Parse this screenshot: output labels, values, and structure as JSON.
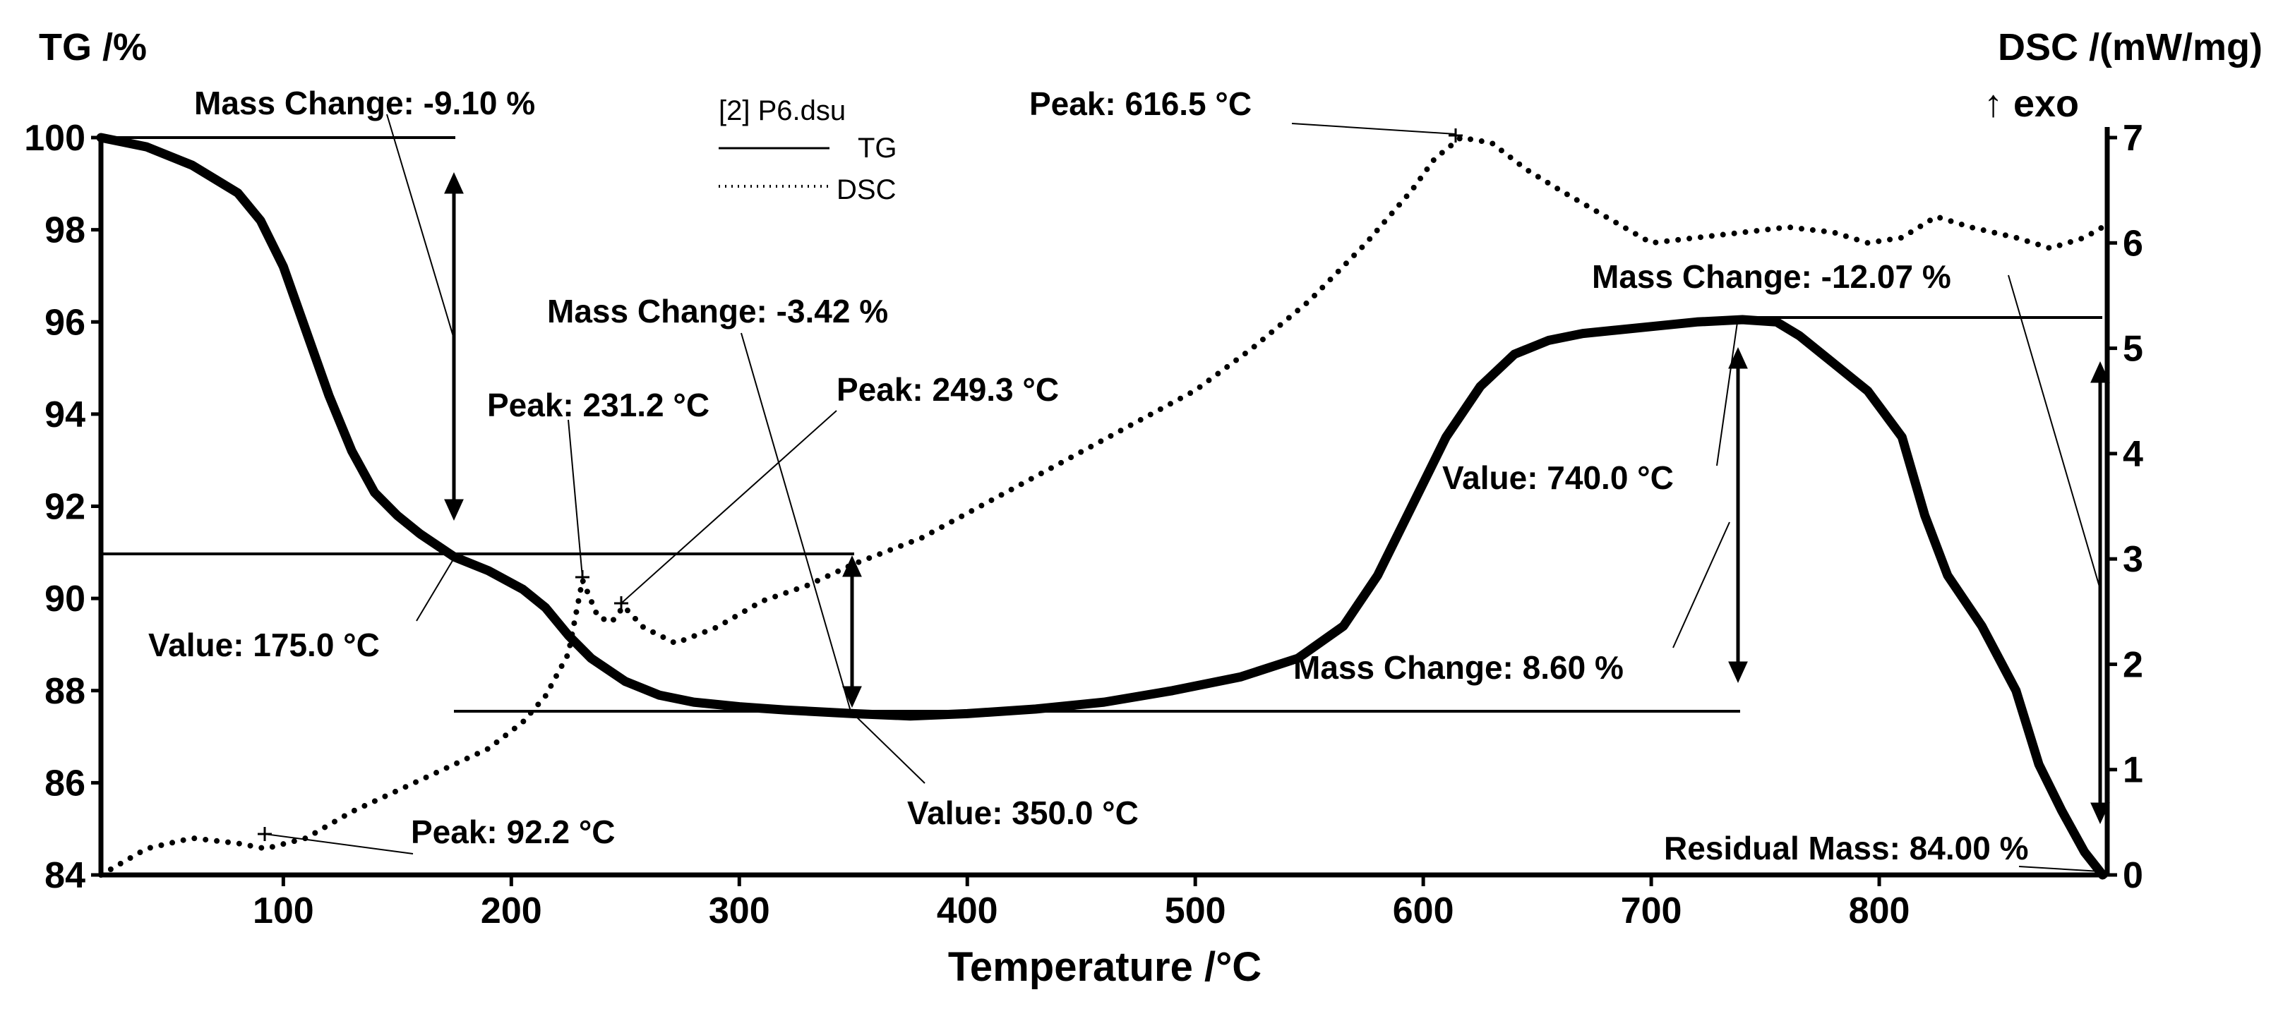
{
  "chart_data": {
    "type": "line",
    "title": "",
    "xlabel": "Temperature /°C",
    "ylabel_left": "TG /%",
    "ylabel_right": "DSC /(mW/mg)",
    "ylabel_right_sub": "↑ exo",
    "xlim": [
      20,
      900
    ],
    "ylim_left": [
      84,
      100
    ],
    "ylim_right": [
      0,
      7
    ],
    "x_ticks": [
      "100",
      "200",
      "300",
      "400",
      "500",
      "600",
      "700",
      "800"
    ],
    "y_ticks_left": [
      "84",
      "86",
      "88",
      "90",
      "92",
      "94",
      "96",
      "98",
      "100"
    ],
    "y_ticks_right": [
      "0",
      "1",
      "2",
      "3",
      "4",
      "5",
      "6",
      "7"
    ],
    "legend": {
      "file": "[2] P6.dsu",
      "entries": [
        {
          "name": "TG",
          "style": "solid"
        },
        {
          "name": "DSC",
          "style": "dotted"
        }
      ]
    },
    "series": [
      {
        "name": "TG",
        "axis": "left",
        "style": "solid",
        "points": [
          [
            20,
            100.0
          ],
          [
            40,
            99.8
          ],
          [
            60,
            99.4
          ],
          [
            80,
            98.8
          ],
          [
            90,
            98.2
          ],
          [
            100,
            97.2
          ],
          [
            110,
            95.8
          ],
          [
            120,
            94.4
          ],
          [
            130,
            93.2
          ],
          [
            140,
            92.3
          ],
          [
            150,
            91.8
          ],
          [
            160,
            91.4
          ],
          [
            175,
            90.9
          ],
          [
            190,
            90.6
          ],
          [
            205,
            90.2
          ],
          [
            215,
            89.8
          ],
          [
            225,
            89.2
          ],
          [
            235,
            88.7
          ],
          [
            250,
            88.2
          ],
          [
            265,
            87.9
          ],
          [
            280,
            87.75
          ],
          [
            300,
            87.65
          ],
          [
            320,
            87.58
          ],
          [
            350,
            87.5
          ],
          [
            375,
            87.45
          ],
          [
            400,
            87.5
          ],
          [
            430,
            87.6
          ],
          [
            460,
            87.75
          ],
          [
            490,
            88.0
          ],
          [
            520,
            88.3
          ],
          [
            545,
            88.7
          ],
          [
            565,
            89.4
          ],
          [
            580,
            90.5
          ],
          [
            595,
            92.0
          ],
          [
            610,
            93.5
          ],
          [
            625,
            94.6
          ],
          [
            640,
            95.3
          ],
          [
            655,
            95.6
          ],
          [
            670,
            95.75
          ],
          [
            700,
            95.9
          ],
          [
            720,
            96.0
          ],
          [
            740,
            96.05
          ],
          [
            755,
            96.0
          ],
          [
            765,
            95.7
          ],
          [
            780,
            95.1
          ],
          [
            795,
            94.5
          ],
          [
            810,
            93.5
          ],
          [
            820,
            91.8
          ],
          [
            830,
            90.5
          ],
          [
            845,
            89.4
          ],
          [
            860,
            88.0
          ],
          [
            870,
            86.4
          ],
          [
            880,
            85.4
          ],
          [
            890,
            84.5
          ],
          [
            898,
            84.0
          ]
        ]
      },
      {
        "name": "DSC",
        "axis": "right",
        "style": "dotted",
        "points": [
          [
            20,
            0.0
          ],
          [
            40,
            0.25
          ],
          [
            60,
            0.35
          ],
          [
            80,
            0.3
          ],
          [
            92.2,
            0.25
          ],
          [
            110,
            0.35
          ],
          [
            130,
            0.6
          ],
          [
            150,
            0.8
          ],
          [
            170,
            1.0
          ],
          [
            190,
            1.2
          ],
          [
            205,
            1.45
          ],
          [
            215,
            1.7
          ],
          [
            225,
            2.1
          ],
          [
            231.2,
            2.8
          ],
          [
            238,
            2.45
          ],
          [
            244,
            2.4
          ],
          [
            249.3,
            2.55
          ],
          [
            258,
            2.35
          ],
          [
            272,
            2.2
          ],
          [
            290,
            2.35
          ],
          [
            310,
            2.6
          ],
          [
            330,
            2.75
          ],
          [
            350,
            2.95
          ],
          [
            380,
            3.2
          ],
          [
            410,
            3.55
          ],
          [
            440,
            3.9
          ],
          [
            470,
            4.25
          ],
          [
            500,
            4.6
          ],
          [
            525,
            5.0
          ],
          [
            550,
            5.45
          ],
          [
            575,
            6.0
          ],
          [
            595,
            6.5
          ],
          [
            605,
            6.8
          ],
          [
            616.5,
            7.0
          ],
          [
            630,
            6.95
          ],
          [
            645,
            6.7
          ],
          [
            660,
            6.5
          ],
          [
            680,
            6.25
          ],
          [
            700,
            6.0
          ],
          [
            720,
            6.05
          ],
          [
            740,
            6.1
          ],
          [
            760,
            6.15
          ],
          [
            780,
            6.1
          ],
          [
            795,
            6.0
          ],
          [
            810,
            6.05
          ],
          [
            825,
            6.25
          ],
          [
            840,
            6.15
          ],
          [
            860,
            6.05
          ],
          [
            875,
            5.95
          ],
          [
            890,
            6.05
          ],
          [
            898,
            6.15
          ]
        ]
      }
    ],
    "annotations": [
      {
        "text": "Mass Change: -9.10 %",
        "value": -9.1
      },
      {
        "text": "Mass Change: -3.42 %",
        "value": -3.42
      },
      {
        "text": "Mass Change: 8.60 %",
        "value": 8.6
      },
      {
        "text": "Mass Change: -12.07 %",
        "value": -12.07
      },
      {
        "text": "Value: 175.0 °C",
        "value": 175.0
      },
      {
        "text": "Value: 350.0 °C",
        "value": 350.0
      },
      {
        "text": "Value: 740.0 °C",
        "value": 740.0
      },
      {
        "text": "Peak: 92.2 °C",
        "value": 92.2
      },
      {
        "text": "Peak: 231.2 °C",
        "value": 231.2
      },
      {
        "text": "Peak: 249.3 °C",
        "value": 249.3
      },
      {
        "text": "Peak: 616.5 °C",
        "value": 616.5
      },
      {
        "text": "Residual Mass: 84.00 %",
        "value": 84.0
      }
    ]
  }
}
